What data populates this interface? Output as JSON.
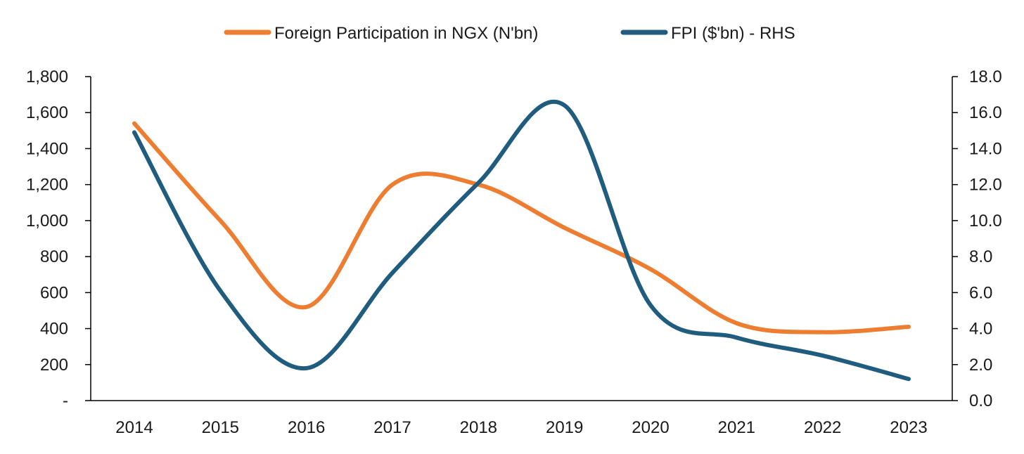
{
  "chart_data": {
    "type": "line",
    "title": "",
    "categories": [
      "2014",
      "2015",
      "2016",
      "2017",
      "2018",
      "2019",
      "2020",
      "2021",
      "2022",
      "2023"
    ],
    "series": [
      {
        "name": "Foreign Participation in NGX (N'bn)",
        "axis": "left",
        "color": "#ED7D31",
        "values": [
          1540,
          1000,
          520,
          1200,
          1200,
          960,
          730,
          430,
          380,
          410
        ]
      },
      {
        "name": "FPI ($'bn) - RHS",
        "axis": "right",
        "color": "#1F5C7E",
        "values": [
          14.9,
          6.1,
          1.8,
          7.1,
          12.1,
          16.4,
          5.3,
          3.5,
          2.5,
          1.2
        ]
      }
    ],
    "y_left": {
      "min": 0,
      "max": 1800,
      "ticks": [
        "-",
        "200",
        "400",
        "600",
        "800",
        "1,000",
        "1,200",
        "1,400",
        "1,600",
        "1,800"
      ]
    },
    "y_right": {
      "min": 0,
      "max": 18,
      "ticks": [
        "0.0",
        "2.0",
        "4.0",
        "6.0",
        "8.0",
        "10.0",
        "12.0",
        "14.0",
        "16.0",
        "18.0"
      ]
    },
    "legend_position": "top-center",
    "grid": false
  }
}
